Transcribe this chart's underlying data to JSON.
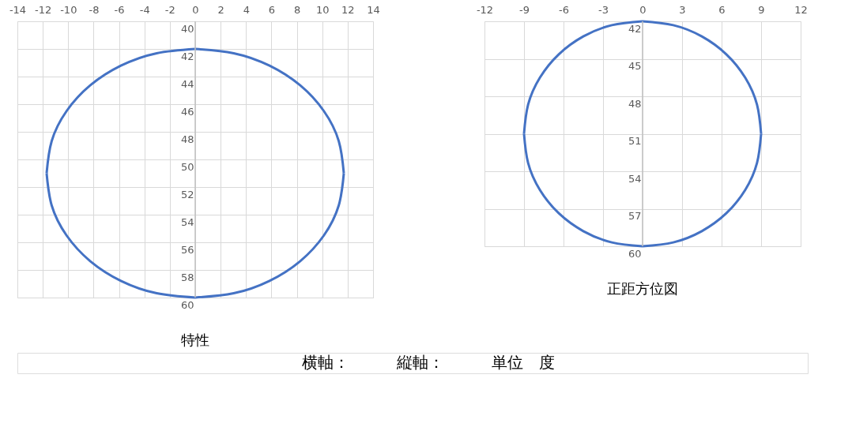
{
  "chart_data": [
    {
      "type": "line",
      "title": "特性",
      "annotations": [
        "横軸：　　　縦軸：　　　単位　度"
      ],
      "series": [
        {
          "color": "#4472c4",
          "x": [
            0,
            3.03,
            5.85,
            8.27,
            10.13,
            11.3,
            11.7
          ],
          "values": [
            42,
            42.31,
            43.21,
            44.64,
            46.5,
            48.67,
            51
          ]
        },
        {
          "color": "#4472c4",
          "x": [
            11.7,
            11.3,
            10.13,
            8.27,
            5.85,
            3.03,
            0
          ],
          "values": [
            51,
            53.33,
            55.5,
            57.36,
            58.79,
            59.69,
            60
          ]
        },
        {
          "color": "#4472c4",
          "x": [
            0,
            -3.03,
            -5.85,
            -8.27,
            -10.13,
            -11.3,
            -11.7
          ],
          "values": [
            60,
            59.69,
            58.79,
            57.36,
            55.5,
            53.33,
            51
          ]
        },
        {
          "color": "#4472c4",
          "x": [
            -11.7,
            -11.3,
            -10.13,
            -8.27,
            -5.85,
            -3.03,
            0
          ],
          "values": [
            51,
            48.67,
            46.5,
            44.64,
            43.21,
            42.31,
            42
          ]
        }
      ],
      "xlim": [
        -14,
        14
      ],
      "xticks": [
        -14,
        -12,
        -10,
        -8,
        -6,
        -4,
        -2,
        0,
        2,
        4,
        6,
        8,
        10,
        12,
        14
      ],
      "ylim": [
        60,
        40
      ],
      "yticks": [
        40,
        42,
        44,
        46,
        48,
        50,
        52,
        54,
        56,
        58,
        60
      ],
      "grid": true
    },
    {
      "type": "line",
      "title": "正距方位図",
      "series": [
        {
          "color": "#4472c4",
          "x": [
            0,
            2.33,
            4.5,
            6.36,
            7.79,
            8.69,
            9
          ],
          "values": [
            42,
            42.31,
            43.21,
            44.64,
            46.5,
            48.67,
            51
          ]
        },
        {
          "color": "#4472c4",
          "x": [
            9,
            8.69,
            7.79,
            6.36,
            4.5,
            2.33,
            0
          ],
          "values": [
            51,
            53.33,
            55.5,
            57.36,
            58.79,
            59.69,
            60
          ]
        },
        {
          "color": "#4472c4",
          "x": [
            0,
            -2.33,
            -4.5,
            -6.36,
            -7.79,
            -8.69,
            -9
          ],
          "values": [
            60,
            59.69,
            58.79,
            57.36,
            55.5,
            53.33,
            51
          ]
        },
        {
          "color": "#4472c4",
          "x": [
            -9,
            -8.69,
            -7.79,
            -6.36,
            -4.5,
            -2.33,
            0
          ],
          "values": [
            51,
            48.67,
            46.5,
            44.64,
            43.21,
            42.31,
            42
          ]
        }
      ],
      "xlim": [
        -12,
        12
      ],
      "xticks": [
        -12,
        -9,
        -6,
        -3,
        0,
        3,
        6,
        9,
        12
      ],
      "ylim": [
        60,
        42
      ],
      "yticks": [
        42,
        45,
        48,
        51,
        54,
        57,
        60
      ],
      "grid": true
    }
  ]
}
